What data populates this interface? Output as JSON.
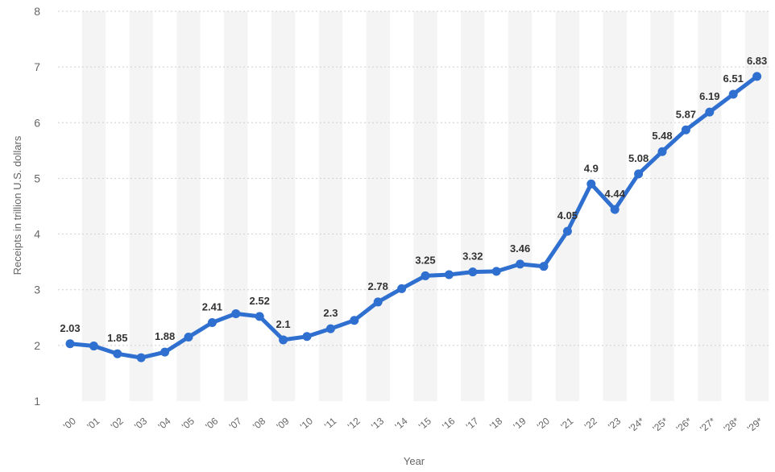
{
  "chart_data": {
    "type": "line",
    "xlabel": "Year",
    "ylabel": "Receipts in trillion U.S. dollars",
    "ylim": [
      1,
      8
    ],
    "yticks": [
      "1",
      "2",
      "3",
      "4",
      "5",
      "6",
      "7",
      "8"
    ],
    "grid": "horizontal dotted",
    "series_color": "#2f6fcf",
    "band_color": "#f4f4f4",
    "categories": [
      "'00",
      "'01",
      "'02",
      "'03",
      "'04",
      "'05",
      "'06",
      "'07",
      "'08",
      "'09",
      "'10",
      "'11",
      "'12",
      "'13",
      "'14",
      "'15",
      "'16",
      "'17",
      "'18",
      "'19",
      "'20",
      "'21",
      "'22",
      "'23",
      "'24*",
      "'25*",
      "'26*",
      "'27*",
      "'28*",
      "'29*"
    ],
    "values": [
      2.03,
      1.99,
      1.85,
      1.78,
      1.88,
      2.15,
      2.41,
      2.57,
      2.52,
      2.1,
      2.16,
      2.3,
      2.45,
      2.78,
      3.02,
      3.25,
      3.27,
      3.32,
      3.33,
      3.46,
      3.42,
      4.05,
      4.9,
      4.44,
      5.08,
      5.48,
      5.87,
      6.19,
      6.51,
      6.83
    ],
    "data_labels": [
      "2.03",
      "",
      "1.85",
      "",
      "1.88",
      "",
      "2.41",
      "",
      "2.52",
      "2.1",
      "",
      "2.3",
      "",
      "2.78",
      "",
      "3.25",
      "",
      "3.32",
      "",
      "3.46",
      "",
      "4.05",
      "4.9",
      "4.44",
      "5.08",
      "5.48",
      "5.87",
      "6.19",
      "6.51",
      "6.83"
    ]
  }
}
